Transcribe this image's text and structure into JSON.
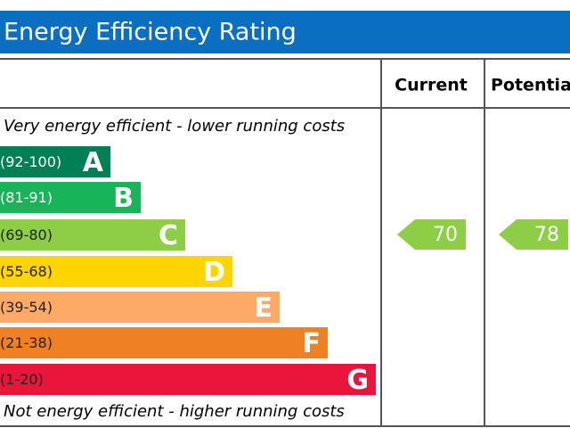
{
  "header": {
    "title": "Energy Efficiency Rating"
  },
  "columns": [
    "Current",
    "Potential"
  ],
  "top_note": "Very energy efficient - lower running costs",
  "bottom_note": "Not energy efficient - higher running costs",
  "bands": [
    {
      "range": "(92-100)",
      "letter": "A",
      "color": "#008054"
    },
    {
      "range": "(81-91)",
      "letter": "B",
      "color": "#19b459"
    },
    {
      "range": "(69-80)",
      "letter": "C",
      "color": "#8dce46"
    },
    {
      "range": "(55-68)",
      "letter": "D",
      "color": "#ffd500"
    },
    {
      "range": "(39-54)",
      "letter": "E",
      "color": "#fcaa65"
    },
    {
      "range": "(21-38)",
      "letter": "F",
      "color": "#ef8023"
    },
    {
      "range": "(1-20)",
      "letter": "G",
      "color": "#e9153b"
    }
  ],
  "current": {
    "value": "70",
    "color": "#8dce46"
  },
  "potential": {
    "value": "78",
    "color": "#8dce46"
  }
}
